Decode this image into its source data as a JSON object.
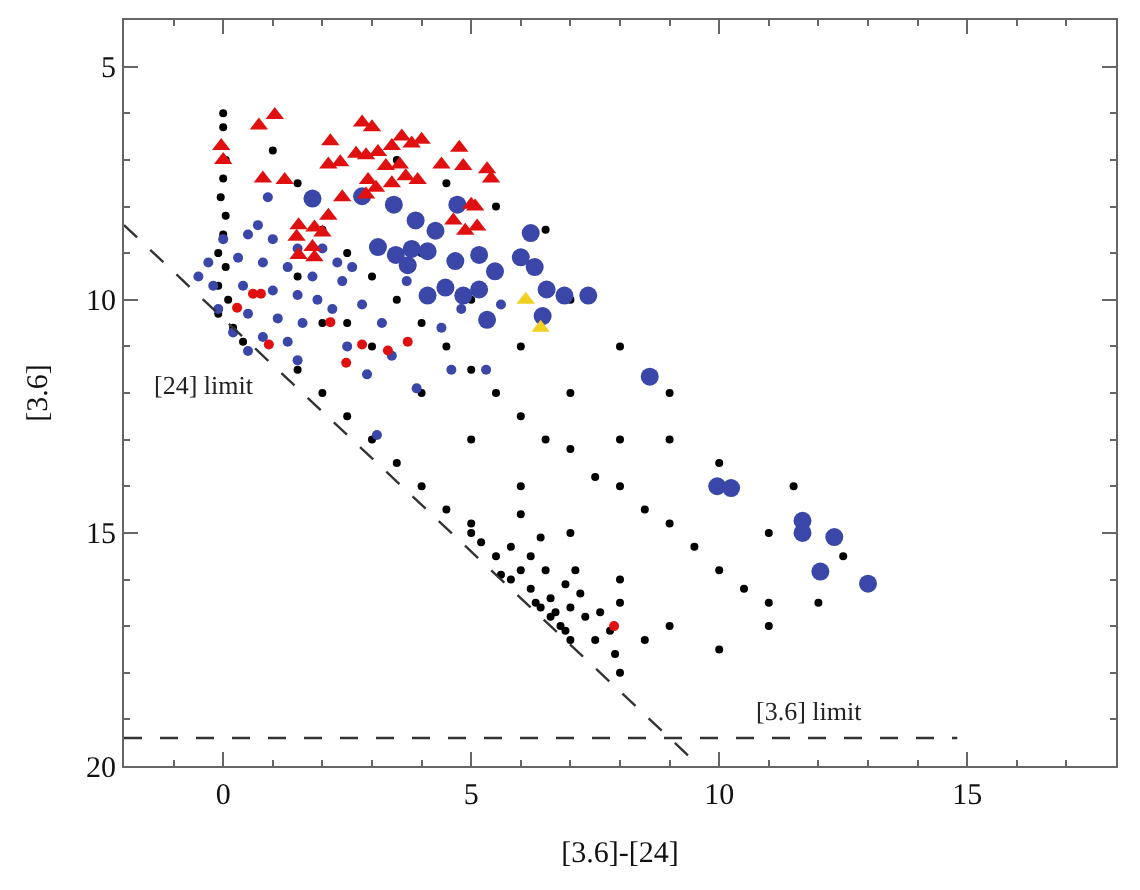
{
  "chart_data": {
    "type": "scatter",
    "xlabel": "[3.6]-[24]",
    "ylabel": "[3.6]",
    "xlim": [
      -2,
      18
    ],
    "xticks": [
      0,
      5,
      10,
      15
    ],
    "ylim": [
      20,
      4
    ],
    "yticks": [
      5,
      10,
      15,
      20
    ],
    "annotations": [
      "[24] limit",
      "[3.6] limit"
    ],
    "series": [
      {
        "color": "#000000",
        "marker": "circle",
        "x": [
          0,
          0,
          0.05,
          0,
          -0.05,
          0.05,
          0,
          -0.1,
          0.05,
          -0.1,
          0.1,
          -0.1,
          0.2,
          0.4,
          1.0,
          1.5,
          2,
          2.5,
          3,
          3.5,
          4,
          4.5,
          5,
          5.5,
          6,
          6.5,
          7,
          7.5,
          8,
          8.5,
          9,
          9.5,
          10,
          10.5,
          11,
          1.5,
          2,
          2.5,
          3,
          3.5,
          4,
          4.5,
          5,
          2,
          3,
          4,
          5,
          6,
          7,
          8,
          9,
          8.5,
          7,
          8,
          9,
          9,
          11,
          6.5,
          5.5,
          4.5,
          3.5,
          1.5,
          2.5,
          4,
          5,
          6,
          7,
          8,
          10,
          11.5,
          12.5,
          11,
          10,
          8,
          12,
          5.2,
          5.5,
          5.8,
          6.2,
          6.5,
          5.8,
          6.2,
          6.6,
          7,
          7.3,
          6.8,
          7.5,
          6.6,
          5.6,
          6.9,
          7.2,
          6.4,
          5,
          6,
          7.6,
          7.8,
          8,
          7,
          6.9,
          6.3,
          6.4,
          7.9,
          6,
          6.7,
          7.1
        ],
        "values": [
          6.0,
          6.3,
          7.0,
          7.4,
          7.8,
          8.2,
          8.6,
          9.0,
          9.3,
          9.7,
          10.0,
          10.3,
          10.6,
          10.9,
          6.8,
          7.5,
          8.5,
          9,
          9.5,
          10,
          10.5,
          11,
          11.5,
          12,
          12.5,
          13,
          13.2,
          13.8,
          14,
          14.5,
          14.8,
          15.3,
          15.8,
          16.2,
          16.5,
          11.5,
          12,
          12.5,
          13,
          13.5,
          14,
          14.5,
          15,
          10.5,
          11,
          12,
          13,
          14,
          15,
          16,
          17,
          17.3,
          10,
          11,
          12,
          13,
          15,
          8.5,
          8,
          7.5,
          7,
          9.5,
          10.5,
          9,
          10,
          11,
          12,
          13,
          13.5,
          14,
          15.5,
          17,
          17.5,
          18,
          16.5,
          15.2,
          15.5,
          15.3,
          15.5,
          15.8,
          16,
          16.2,
          16.4,
          16.6,
          16.8,
          17,
          17.3,
          16.8,
          15.9,
          16.1,
          16.3,
          15.1,
          14.8,
          14.6,
          16.7,
          17.1,
          16.5,
          17.3,
          17.1,
          16.5,
          16.6,
          17.6,
          15.8,
          16.7,
          15.8
        ]
      },
      {
        "color": "#3a46a8",
        "marker": "circle",
        "x": [
          0,
          0.5,
          1,
          1.5,
          -0.3,
          0.3,
          0.8,
          1.3,
          1.8,
          -0.2,
          0.4,
          1,
          1.5,
          1.9,
          -0.1,
          0.5,
          1.1,
          1.6,
          0.2,
          0.8,
          1.3,
          0.5,
          2.2,
          2.4,
          2.0,
          -0.5,
          0.9,
          0.7,
          1.8,
          2.6,
          2.8,
          3.2,
          3.4,
          2.9,
          3.9,
          4.6,
          5.3,
          4.4,
          4.8,
          2.3,
          3.7,
          5.6,
          2.5,
          1.5,
          3.1
        ],
        "values": [
          8.7,
          8.6,
          8.7,
          8.9,
          9.2,
          9.1,
          9.2,
          9.3,
          9.5,
          9.7,
          9.7,
          9.8,
          9.9,
          10,
          10.2,
          10.3,
          10.4,
          10.5,
          10.7,
          10.8,
          10.9,
          11.1,
          10.2,
          9.6,
          8.9,
          9.5,
          7.8,
          8.4,
          null,
          9.3,
          10.1,
          10.5,
          11.2,
          11.6,
          11.9,
          11.5,
          11.5,
          10.6,
          10.2,
          9.2,
          9.6,
          10.1,
          11.0,
          11.3,
          12.9
        ]
      },
      {
        "color": "#3a46a8",
        "marker": "circle",
        "x": [
          1.8,
          2.8,
          3.44,
          3.88,
          4.72,
          3.12,
          3.48,
          3.8,
          4.12,
          3.72,
          4.28,
          4.68,
          5.16,
          5.48,
          6.2,
          6.0,
          6.28,
          6.52,
          6.88,
          7.36,
          4.12,
          4.48,
          4.84,
          5.16,
          6.44,
          5.32,
          8.6,
          9.96,
          10.24,
          11.68,
          11.68,
          12.32,
          12.04,
          13.0
        ],
        "values": [
          7.83,
          7.78,
          7.96,
          8.3,
          7.96,
          8.87,
          9.04,
          8.91,
          8.96,
          9.26,
          8.52,
          9.17,
          9.04,
          9.39,
          8.57,
          9.09,
          9.3,
          9.78,
          9.91,
          9.91,
          9.91,
          9.74,
          9.91,
          9.78,
          10.35,
          10.43,
          11.65,
          14.0,
          14.04,
          14.74,
          15.0,
          15.09,
          15.83,
          16.09
        ]
      },
      {
        "color": "#e01010",
        "marker": "triangle",
        "x": [
          0.72,
          1.04,
          -0.04,
          0,
          0.8,
          1.24,
          2.16,
          2.12,
          2.36,
          2.8,
          3.0,
          2.68,
          2.88,
          3.12,
          3.4,
          3.6,
          3.8,
          4.0,
          3.56,
          3.28,
          2.92,
          3.08,
          3.4,
          3.68,
          3.92,
          4.4,
          4.76,
          4.84,
          5.32,
          5.4,
          2.4,
          2.88,
          2.12,
          1.52,
          1.84,
          2.0,
          1.48,
          1.8,
          1.52,
          1.84,
          4.64,
          5.0,
          5.08,
          4.88,
          5.12
        ],
        "values": [
          6.26,
          6.04,
          6.7,
          7.0,
          7.4,
          7.43,
          6.6,
          7.1,
          7.05,
          6.2,
          6.3,
          6.87,
          6.9,
          6.83,
          6.7,
          6.5,
          6.65,
          6.57,
          7.1,
          7.13,
          7.43,
          7.6,
          7.5,
          7.35,
          7.43,
          7.1,
          6.74,
          7.13,
          7.2,
          7.4,
          7.8,
          7.74,
          8.2,
          8.4,
          8.45,
          8.56,
          8.65,
          8.87,
          9.04,
          9.09,
          8.3,
          7.96,
          8.0,
          8.52,
          8.43
        ]
      },
      {
        "color": "#f0d020",
        "marker": "triangle",
        "x": [
          6.1,
          6.4
        ],
        "values": [
          10.0,
          10.6
        ]
      },
      {
        "color": "#e01010",
        "marker": "circle",
        "x": [
          0.6,
          0.76,
          0.28,
          0.92,
          2.48,
          2.8,
          3.32,
          3.72,
          2.16,
          7.88
        ],
        "values": [
          9.87,
          9.87,
          10.17,
          10.96,
          11.35,
          10.96,
          11.09,
          10.9,
          10.48,
          17.0
        ]
      },
      {
        "type": "line",
        "color": "#333333",
        "line_style": "dashed",
        "marker": "none",
        "x": [
          -2,
          9.6
        ],
        "values": [
          8.4,
          20
        ]
      },
      {
        "type": "line",
        "color": "#333333",
        "line_style": "dashed",
        "marker": "none",
        "x": [
          -2,
          14.8
        ],
        "values": [
          19.4,
          19.4
        ]
      }
    ]
  }
}
